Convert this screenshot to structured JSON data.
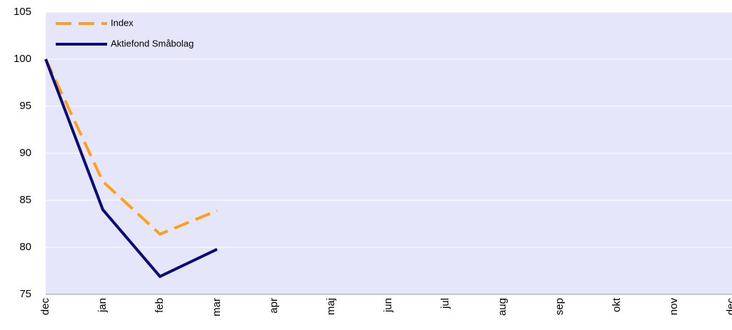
{
  "chart_data": {
    "type": "line",
    "categories": [
      "dec",
      "jan",
      "feb",
      "mar",
      "apr",
      "maj",
      "jun",
      "jul",
      "aug",
      "sep",
      "okt",
      "nov",
      "dec"
    ],
    "series": [
      {
        "name": "Index",
        "color": "#ff9f1a",
        "dash": true,
        "values": [
          100,
          87,
          81.4,
          83.9,
          null,
          null,
          null,
          null,
          null,
          null,
          null,
          null,
          null
        ]
      },
      {
        "name": "Aktiefond Småbolag",
        "color": "#0a0a78",
        "dash": false,
        "values": [
          100,
          84,
          76.9,
          79.8,
          null,
          null,
          null,
          null,
          null,
          null,
          null,
          null,
          null
        ]
      }
    ],
    "ylim": [
      75,
      105
    ],
    "yticks": [
      75,
      80,
      85,
      90,
      95,
      100,
      105
    ],
    "grid": true,
    "legend": "top-left"
  }
}
